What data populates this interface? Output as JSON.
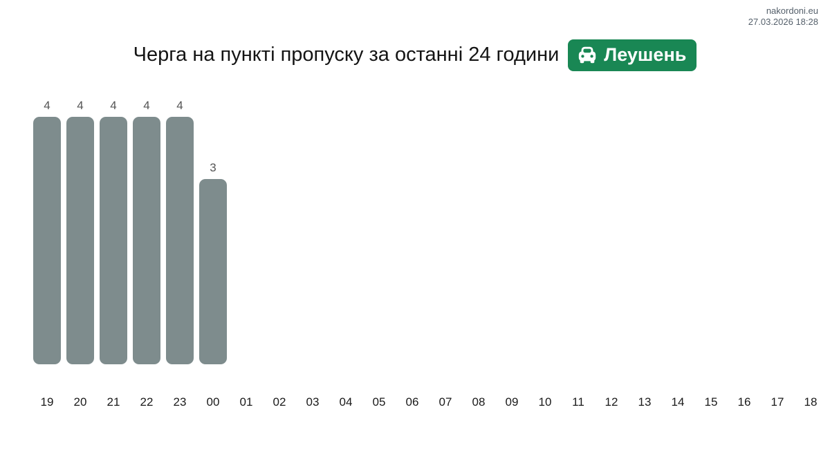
{
  "site": {
    "name": "nakordoni.eu",
    "timestamp": "27.03.2026 18:28"
  },
  "header": {
    "title": "Черга на пункті пропуску за останні 24 години",
    "badge": {
      "icon": "car-front-icon",
      "label": "Леушень",
      "background": "#198754",
      "text_color": "#ffffff"
    }
  },
  "chart_data": {
    "type": "bar",
    "title": "Черга на пункті пропуску за останні 24 години",
    "xlabel": "",
    "ylabel": "",
    "categories": [
      "19",
      "20",
      "21",
      "22",
      "23",
      "00",
      "01",
      "02",
      "03",
      "04",
      "05",
      "06",
      "07",
      "08",
      "09",
      "10",
      "11",
      "12",
      "13",
      "14",
      "15",
      "16",
      "17",
      "18"
    ],
    "values": [
      4,
      4,
      4,
      4,
      4,
      3,
      0,
      0,
      0,
      0,
      0,
      0,
      0,
      0,
      0,
      0,
      0,
      0,
      0,
      0,
      0,
      0,
      0,
      0
    ],
    "ylim": [
      0,
      4
    ],
    "bar_color": "#7e8c8d",
    "value_label_color": "#545454",
    "axis_label_color": "#1a1a1a",
    "grid": false,
    "legend": false,
    "data_labels": "value shown above each non-zero bar"
  }
}
